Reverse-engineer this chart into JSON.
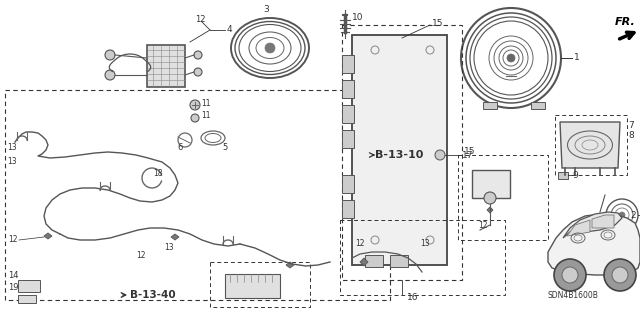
{
  "bg_color": "#ffffff",
  "fig_width": 6.4,
  "fig_height": 3.19,
  "diagram_code": "SDN4B1600B",
  "ref_B1310": "B-13-10",
  "ref_B1340": "B-13-40",
  "line_color": "#333333",
  "light_gray": "#cccccc",
  "mid_gray": "#888888",
  "dark_gray": "#444444",
  "lw_main": 0.9,
  "lw_thin": 0.6,
  "lw_thick": 1.4,
  "label_fs": 6.0,
  "label_bold_fs": 7.5
}
